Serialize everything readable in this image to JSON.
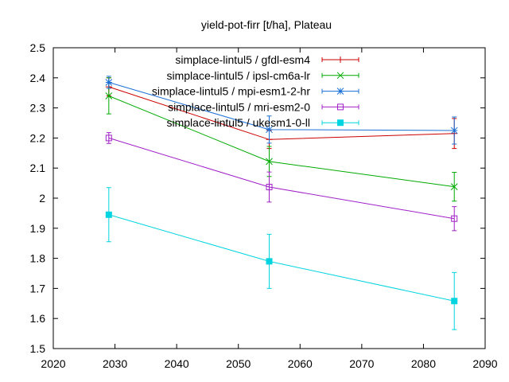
{
  "chart_data": {
    "type": "line",
    "title": "yield-pot-firr [t/ha], Plateau",
    "xlabel": "",
    "ylabel": "",
    "xlim": [
      2020,
      2090
    ],
    "ylim": [
      1.5,
      2.5
    ],
    "xticks": [
      2020,
      2030,
      2040,
      2050,
      2060,
      2070,
      2080,
      2090
    ],
    "yticks": [
      1.5,
      1.6,
      1.7,
      1.8,
      1.9,
      2.0,
      2.1,
      2.2,
      2.3,
      2.4,
      2.5
    ],
    "xtick_labels": [
      "2020",
      "2030",
      "2040",
      "2050",
      "2060",
      "2070",
      "2080",
      "2090"
    ],
    "ytick_labels": [
      "1.5",
      "1.6",
      "1.7",
      "1.8",
      "1.9",
      "2",
      "2.1",
      "2.2",
      "2.3",
      "2.4",
      "2.5"
    ],
    "grid": false,
    "legend_position": "top-right",
    "series": [
      {
        "name": "simplace-lintul5 / gfdl-esm4",
        "color": "#cc0000",
        "marker": "plus",
        "x": [
          2029,
          2055,
          2085
        ],
        "y": [
          2.37,
          2.195,
          2.215
        ],
        "err": [
          0.03,
          0.03,
          0.05
        ]
      },
      {
        "name": "simplace-lintul5 / ipsl-cm6a-lr",
        "color": "#00aa00",
        "marker": "cross",
        "x": [
          2029,
          2055,
          2085
        ],
        "y": [
          2.34,
          2.122,
          2.038
        ],
        "err": [
          0.06,
          0.05,
          0.048
        ]
      },
      {
        "name": "simplace-lintul5 / mpi-esm1-2-hr",
        "color": "#1a6fd6",
        "marker": "star",
        "x": [
          2029,
          2055,
          2085
        ],
        "y": [
          2.385,
          2.228,
          2.225
        ],
        "err": [
          0.02,
          0.045,
          0.045
        ]
      },
      {
        "name": "simplace-lintul5 / mri-esm2-0",
        "color": "#a020c8",
        "marker": "square-open",
        "x": [
          2029,
          2055,
          2085
        ],
        "y": [
          2.2,
          2.037,
          1.932
        ],
        "err": [
          0.018,
          0.05,
          0.04
        ]
      },
      {
        "name": "simplace-lintul5 / ukesm1-0-ll",
        "color": "#00d4e0",
        "marker": "square-filled",
        "x": [
          2029,
          2055,
          2085
        ],
        "y": [
          1.945,
          1.79,
          1.658
        ],
        "err": [
          0.09,
          0.09,
          0.095
        ]
      }
    ]
  }
}
